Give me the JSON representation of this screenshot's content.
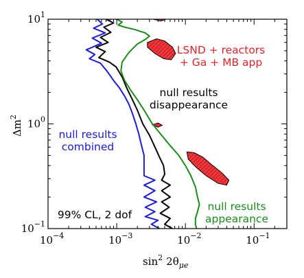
{
  "chart_data": {
    "type": "line",
    "xscale": "log",
    "yscale": "log",
    "xlim": [
      0.0001,
      0.3
    ],
    "ylim": [
      0.1,
      10
    ],
    "xlabel": "sin² 2θ_μe",
    "xlabel_main": "sin",
    "xlabel_sup": "2",
    "xlabel_mid": "2θ",
    "xlabel_sub": "μe",
    "ylabel": "Δm²",
    "ylabel_main": "Δm",
    "ylabel_sup": "2",
    "x_ticks": [
      {
        "value": 0.0001,
        "mantissa": "10",
        "exp": "−4"
      },
      {
        "value": 0.001,
        "mantissa": "10",
        "exp": "−3"
      },
      {
        "value": 0.01,
        "mantissa": "10",
        "exp": "−2"
      },
      {
        "value": 0.1,
        "mantissa": "10",
        "exp": "−1"
      }
    ],
    "y_ticks": [
      {
        "value": 0.1,
        "mantissa": "10",
        "exp": "−1"
      },
      {
        "value": 1,
        "mantissa": "10",
        "exp": "0"
      },
      {
        "value": 10,
        "mantissa": "10",
        "exp": "1"
      }
    ],
    "series": [
      {
        "name": "null results combined",
        "color": "#1a1adb",
        "points": [
          [
            0.00052,
            10
          ],
          [
            0.00062,
            9.0
          ],
          [
            0.00046,
            8.2
          ],
          [
            0.00068,
            7.4
          ],
          [
            0.00044,
            6.6
          ],
          [
            0.0006,
            5.9
          ],
          [
            0.00036,
            5.1
          ],
          [
            0.00048,
            4.6
          ],
          [
            0.0004,
            4.2
          ],
          [
            0.00058,
            3.8
          ],
          [
            0.00072,
            3.2
          ],
          [
            0.0009,
            2.6
          ],
          [
            0.0011,
            2.2
          ],
          [
            0.0013,
            1.85
          ],
          [
            0.0015,
            1.55
          ],
          [
            0.0017,
            1.25
          ],
          [
            0.0019,
            1.0
          ],
          [
            0.0021,
            0.8
          ],
          [
            0.0023,
            0.62
          ],
          [
            0.0025,
            0.5
          ],
          [
            0.0025,
            0.4
          ],
          [
            0.0025,
            0.32
          ],
          [
            0.0036,
            0.29
          ],
          [
            0.0025,
            0.26
          ],
          [
            0.0036,
            0.23
          ],
          [
            0.0025,
            0.2
          ],
          [
            0.0038,
            0.18
          ],
          [
            0.0026,
            0.16
          ],
          [
            0.0036,
            0.145
          ],
          [
            0.0026,
            0.13
          ],
          [
            0.004,
            0.12
          ],
          [
            0.0032,
            0.11
          ],
          [
            0.0042,
            0.1
          ]
        ]
      },
      {
        "name": "null results disappearance",
        "color": "#000000",
        "points": [
          [
            0.0007,
            10
          ],
          [
            0.0009,
            9.2
          ],
          [
            0.00065,
            8.4
          ],
          [
            0.00082,
            7.5
          ],
          [
            0.00058,
            6.7
          ],
          [
            0.00075,
            6.0
          ],
          [
            0.0005,
            5.4
          ],
          [
            0.00068,
            4.9
          ],
          [
            0.00055,
            4.3
          ],
          [
            0.00078,
            3.9
          ],
          [
            0.00098,
            3.5
          ],
          [
            0.0012,
            2.8
          ],
          [
            0.0014,
            2.2
          ],
          [
            0.0017,
            1.7
          ],
          [
            0.002,
            1.35
          ],
          [
            0.0024,
            1.0
          ],
          [
            0.003,
            0.78
          ],
          [
            0.0036,
            0.6
          ],
          [
            0.0042,
            0.48
          ],
          [
            0.0048,
            0.4
          ],
          [
            0.005,
            0.33
          ],
          [
            0.0045,
            0.29
          ],
          [
            0.006,
            0.26
          ],
          [
            0.0045,
            0.23
          ],
          [
            0.006,
            0.2
          ],
          [
            0.0045,
            0.18
          ],
          [
            0.0058,
            0.16
          ],
          [
            0.0043,
            0.14
          ],
          [
            0.006,
            0.125
          ],
          [
            0.005,
            0.11
          ],
          [
            0.0065,
            0.1
          ]
        ]
      },
      {
        "name": "null results appearance",
        "color": "#1a8a1a",
        "points": [
          [
            0.001,
            10
          ],
          [
            0.0012,
            9.4
          ],
          [
            0.00105,
            8.8
          ],
          [
            0.0013,
            8.4
          ],
          [
            0.0018,
            8.0
          ],
          [
            0.0026,
            7.4
          ],
          [
            0.003,
            6.9
          ],
          [
            0.0026,
            6.4
          ],
          [
            0.002,
            5.8
          ],
          [
            0.0015,
            4.8
          ],
          [
            0.0012,
            3.9
          ],
          [
            0.00115,
            3.2
          ],
          [
            0.0013,
            2.6
          ],
          [
            0.0016,
            2.1
          ],
          [
            0.002,
            1.7
          ],
          [
            0.0026,
            1.3
          ],
          [
            0.0033,
            1.0
          ],
          [
            0.0045,
            0.78
          ],
          [
            0.006,
            0.62
          ],
          [
            0.008,
            0.5
          ],
          [
            0.01,
            0.4
          ],
          [
            0.012,
            0.32
          ],
          [
            0.014,
            0.25
          ],
          [
            0.015,
            0.2
          ],
          [
            0.016,
            0.17
          ],
          [
            0.015,
            0.145
          ],
          [
            0.014,
            0.125
          ],
          [
            0.014,
            0.11
          ],
          [
            0.0145,
            0.1
          ]
        ]
      }
    ],
    "regions": [
      {
        "name": "LSND + reactors + Ga + MB app",
        "color": "#e0252a",
        "islands": [
          [
            [
              0.0034,
              10
            ],
            [
              0.0044,
              9.6
            ],
            [
              0.0052,
              10
            ]
          ],
          [
            [
              0.0028,
              6.0
            ],
            [
              0.0038,
              6.5
            ],
            [
              0.005,
              6.2
            ],
            [
              0.0065,
              5.4
            ],
            [
              0.0072,
              4.7
            ],
            [
              0.0062,
              4.1
            ],
            [
              0.0048,
              4.2
            ],
            [
              0.0036,
              4.7
            ],
            [
              0.0028,
              5.4
            ]
          ],
          [
            [
              0.0033,
              0.98
            ],
            [
              0.004,
              1.02
            ],
            [
              0.0046,
              0.97
            ],
            [
              0.004,
              0.93
            ]
          ],
          [
            [
              0.0105,
              0.54
            ],
            [
              0.0135,
              0.53
            ],
            [
              0.018,
              0.48
            ],
            [
              0.025,
              0.4
            ],
            [
              0.034,
              0.34
            ],
            [
              0.043,
              0.29
            ],
            [
              0.04,
              0.26
            ],
            [
              0.03,
              0.27
            ],
            [
              0.02,
              0.32
            ],
            [
              0.014,
              0.39
            ],
            [
              0.011,
              0.46
            ]
          ]
        ]
      }
    ],
    "annotations": [
      {
        "lines": [
          "LSND + reactors",
          "+ Ga + MB app"
        ],
        "color": "#e0252a"
      },
      {
        "lines": [
          "null results",
          "disappearance"
        ],
        "color": "#000000"
      },
      {
        "lines": [
          "null results",
          "combined"
        ],
        "color": "#1a1adb"
      },
      {
        "lines": [
          "null results",
          "appearance"
        ],
        "color": "#1a8a1a"
      },
      {
        "lines": [
          "99% CL, 2 dof"
        ],
        "color": "#000000"
      }
    ]
  }
}
